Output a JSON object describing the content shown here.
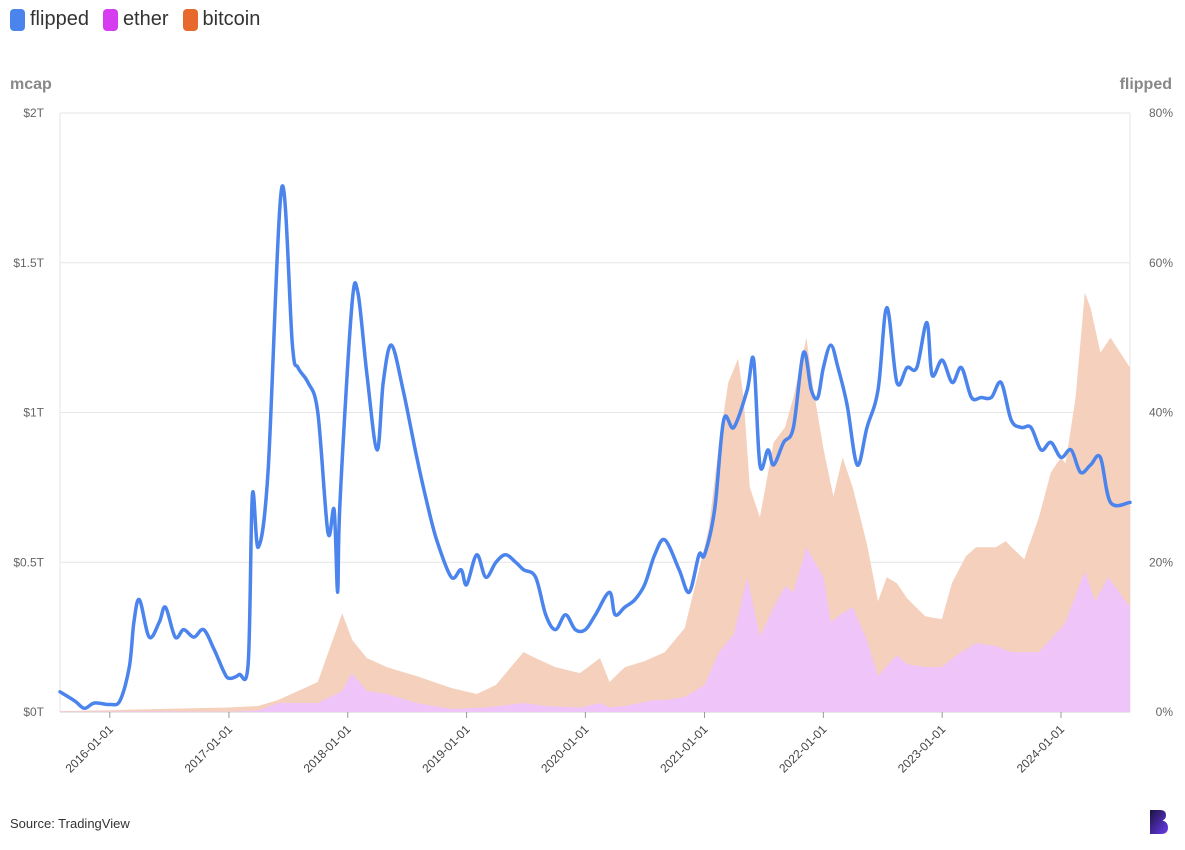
{
  "legend": [
    {
      "label": "flipped",
      "color": "#4a84ec"
    },
    {
      "label": "ether",
      "color": "#d63cf0"
    },
    {
      "label": "bitcoin",
      "color": "#e8692e"
    }
  ],
  "source": "Source: TradingView",
  "logo_icon": "b-logo-icon",
  "chart_data": {
    "type": "area",
    "title": "",
    "y_left": {
      "label": "mcap",
      "ticks": [
        "$0T",
        "$0.5T",
        "$1T",
        "$1.5T",
        "$2T"
      ],
      "range": [
        0,
        2
      ],
      "unit": "trillion USD"
    },
    "y_right": {
      "label": "flipped",
      "ticks": [
        "0%",
        "20%",
        "40%",
        "60%",
        "80%"
      ],
      "range": [
        0,
        80
      ],
      "unit": "percent"
    },
    "x_range": [
      "2015-08-01",
      "2024-07-31"
    ],
    "x_ticks": [
      "2016-01-01",
      "2017-01-01",
      "2018-01-01",
      "2019-01-01",
      "2020-01-01",
      "2021-01-01",
      "2022-01-01",
      "2023-01-01",
      "2024-01-01"
    ],
    "grid": true,
    "legend_position": "top-left",
    "series": [
      {
        "name": "bitcoin",
        "type": "area",
        "axis": "left",
        "color": "#f5d0bd",
        "x": [
          "2015-08-01",
          "2016-01-01",
          "2016-06-01",
          "2017-01-01",
          "2017-04-01",
          "2017-06-01",
          "2017-08-01",
          "2017-10-01",
          "2017-12-15",
          "2018-01-15",
          "2018-03-01",
          "2018-05-01",
          "2018-08-01",
          "2018-11-15",
          "2019-02-01",
          "2019-04-01",
          "2019-06-25",
          "2019-08-01",
          "2019-10-01",
          "2019-12-15",
          "2020-02-15",
          "2020-03-15",
          "2020-05-01",
          "2020-07-01",
          "2020-09-01",
          "2020-11-01",
          "2021-01-01",
          "2021-01-15",
          "2021-02-15",
          "2021-03-15",
          "2021-04-14",
          "2021-05-01",
          "2021-05-20",
          "2021-06-20",
          "2021-08-01",
          "2021-09-05",
          "2021-10-01",
          "2021-11-10",
          "2021-12-01",
          "2022-01-01",
          "2022-02-01",
          "2022-03-01",
          "2022-04-01",
          "2022-05-15",
          "2022-06-18",
          "2022-07-15",
          "2022-08-15",
          "2022-09-15",
          "2022-11-10",
          "2022-12-31",
          "2023-01-31",
          "2023-03-15",
          "2023-04-15",
          "2023-06-15",
          "2023-07-15",
          "2023-09-10",
          "2023-10-25",
          "2023-12-01",
          "2024-01-01",
          "2024-01-15",
          "2024-02-15",
          "2024-03-14",
          "2024-04-01",
          "2024-05-01",
          "2024-06-01",
          "2024-07-31"
        ],
        "values": [
          0.003,
          0.006,
          0.01,
          0.015,
          0.02,
          0.04,
          0.07,
          0.1,
          0.33,
          0.24,
          0.18,
          0.15,
          0.12,
          0.08,
          0.06,
          0.09,
          0.2,
          0.18,
          0.15,
          0.13,
          0.18,
          0.1,
          0.15,
          0.17,
          0.2,
          0.28,
          0.55,
          0.62,
          0.9,
          1.1,
          1.18,
          1.05,
          0.75,
          0.65,
          0.9,
          0.95,
          1.05,
          1.25,
          1.08,
          0.88,
          0.72,
          0.85,
          0.75,
          0.56,
          0.37,
          0.45,
          0.43,
          0.38,
          0.32,
          0.31,
          0.43,
          0.52,
          0.55,
          0.55,
          0.57,
          0.51,
          0.65,
          0.8,
          0.85,
          0.83,
          1.05,
          1.4,
          1.35,
          1.2,
          1.25,
          1.15
        ]
      },
      {
        "name": "ether",
        "type": "area",
        "axis": "left",
        "color": "#eec4f9",
        "x": [
          "2015-08-01",
          "2016-06-01",
          "2017-01-01",
          "2017-04-01",
          "2017-06-01",
          "2017-08-01",
          "2017-10-01",
          "2017-12-15",
          "2018-01-13",
          "2018-03-01",
          "2018-05-01",
          "2018-08-01",
          "2018-11-15",
          "2019-03-01",
          "2019-06-25",
          "2019-09-01",
          "2019-12-15",
          "2020-02-15",
          "2020-03-15",
          "2020-05-01",
          "2020-08-01",
          "2020-09-01",
          "2020-11-01",
          "2021-01-01",
          "2021-02-15",
          "2021-04-01",
          "2021-05-12",
          "2021-06-20",
          "2021-08-01",
          "2021-09-05",
          "2021-10-01",
          "2021-11-10",
          "2022-01-01",
          "2022-01-24",
          "2022-03-01",
          "2022-04-01",
          "2022-05-15",
          "2022-06-18",
          "2022-08-15",
          "2022-09-15",
          "2022-11-10",
          "2022-12-31",
          "2023-02-15",
          "2023-04-15",
          "2023-06-15",
          "2023-08-01",
          "2023-10-25",
          "2024-01-01",
          "2024-01-15",
          "2024-03-14",
          "2024-04-15",
          "2024-05-25",
          "2024-07-31"
        ],
        "values": [
          0.001,
          0.002,
          0.001,
          0.005,
          0.03,
          0.03,
          0.03,
          0.07,
          0.13,
          0.07,
          0.06,
          0.03,
          0.01,
          0.015,
          0.03,
          0.02,
          0.015,
          0.03,
          0.015,
          0.02,
          0.04,
          0.04,
          0.05,
          0.09,
          0.2,
          0.26,
          0.45,
          0.25,
          0.35,
          0.42,
          0.4,
          0.55,
          0.45,
          0.3,
          0.33,
          0.35,
          0.24,
          0.12,
          0.19,
          0.16,
          0.15,
          0.15,
          0.19,
          0.23,
          0.22,
          0.2,
          0.2,
          0.28,
          0.3,
          0.47,
          0.37,
          0.45,
          0.35
        ]
      },
      {
        "name": "flipped",
        "type": "line",
        "axis": "right",
        "color": "#4a84ec",
        "x": [
          "2015-08-01",
          "2015-09-15",
          "2015-10-15",
          "2015-11-15",
          "2016-01-01",
          "2016-02-01",
          "2016-03-01",
          "2016-03-15",
          "2016-04-01",
          "2016-05-01",
          "2016-06-01",
          "2016-06-20",
          "2016-07-20",
          "2016-08-15",
          "2016-09-15",
          "2016-10-15",
          "2016-11-15",
          "2016-12-15",
          "2017-01-01",
          "2017-02-01",
          "2017-03-01",
          "2017-03-14",
          "2017-04-01",
          "2017-05-01",
          "2017-06-12",
          "2017-07-15",
          "2017-08-01",
          "2017-09-01",
          "2017-10-01",
          "2017-11-01",
          "2017-11-20",
          "2017-12-01",
          "2017-12-08",
          "2018-01-13",
          "2018-02-01",
          "2018-03-01",
          "2018-04-01",
          "2018-04-20",
          "2018-05-15",
          "2018-06-20",
          "2018-08-01",
          "2018-09-01",
          "2018-10-01",
          "2018-11-15",
          "2018-12-15",
          "2019-01-01",
          "2019-02-01",
          "2019-03-01",
          "2019-04-01",
          "2019-05-01",
          "2019-06-01",
          "2019-06-25",
          "2019-08-01",
          "2019-09-01",
          "2019-10-01",
          "2019-11-01",
          "2019-12-01",
          "2020-01-01",
          "2020-02-01",
          "2020-03-15",
          "2020-04-01",
          "2020-05-01",
          "2020-06-01",
          "2020-07-01",
          "2020-08-01",
          "2020-09-01",
          "2020-10-15",
          "2020-11-15",
          "2020-12-15",
          "2021-01-01",
          "2021-02-01",
          "2021-03-01",
          "2021-04-01",
          "2021-05-12",
          "2021-06-01",
          "2021-06-20",
          "2021-07-15",
          "2021-08-01",
          "2021-09-01",
          "2021-10-01",
          "2021-11-01",
          "2021-11-25",
          "2021-12-15",
          "2022-01-01",
          "2022-01-24",
          "2022-02-15",
          "2022-03-15",
          "2022-04-15",
          "2022-05-15",
          "2022-06-18",
          "2022-07-15",
          "2022-08-15",
          "2022-09-15",
          "2022-10-15",
          "2022-11-15",
          "2022-12-01",
          "2023-01-01",
          "2023-02-01",
          "2023-03-01",
          "2023-04-01",
          "2023-05-01",
          "2023-06-01",
          "2023-07-01",
          "2023-08-01",
          "2023-09-01",
          "2023-10-01",
          "2023-11-01",
          "2023-12-01",
          "2024-01-01",
          "2024-02-01",
          "2024-03-01",
          "2024-04-01",
          "2024-05-01",
          "2024-06-01",
          "2024-07-31"
        ],
        "values": [
          2.7,
          1.5,
          0.5,
          1.2,
          1.0,
          1.5,
          6.0,
          12,
          15,
          10,
          12,
          14,
          10,
          11,
          10,
          11,
          8.5,
          5.5,
          4.5,
          5,
          6.5,
          29,
          22,
          32,
          70,
          49,
          46,
          44,
          40,
          24,
          27,
          16,
          28,
          54,
          56,
          45,
          35,
          44,
          49,
          43,
          34,
          28,
          23,
          18,
          19,
          17,
          21,
          18,
          20,
          21,
          20,
          19,
          18,
          13,
          11,
          13,
          11,
          11,
          13,
          16,
          13,
          14,
          15,
          17,
          21,
          23,
          19,
          16,
          21,
          21,
          27,
          39,
          38,
          43,
          47,
          33,
          35,
          33,
          36,
          38,
          48,
          43,
          42,
          46,
          49,
          46,
          41,
          33,
          38,
          43,
          54,
          44,
          46,
          46,
          52,
          45,
          47,
          44,
          46,
          42,
          42,
          42,
          44,
          39,
          38,
          38,
          35,
          36,
          34,
          35,
          32,
          33,
          34,
          28,
          28
        ]
      }
    ]
  }
}
